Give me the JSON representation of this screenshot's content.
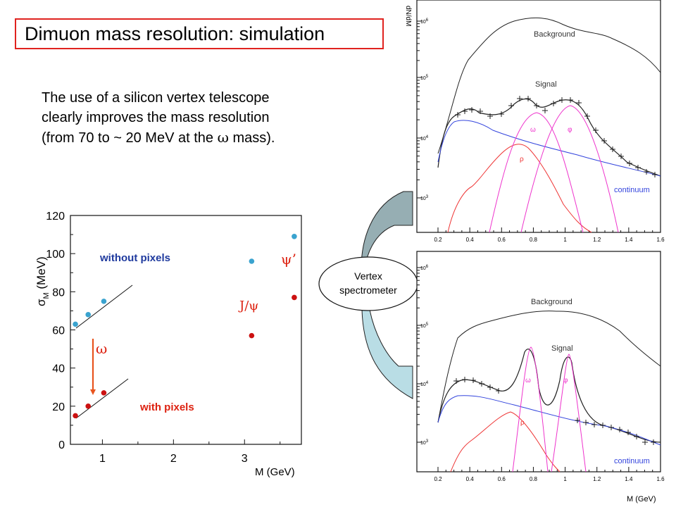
{
  "title": "Dimuon mass resolution: simulation",
  "description": {
    "line1": "The use of a silicon vertex telescope",
    "line2": "clearly improves the mass resolution",
    "line3_pre": "(from 70 to ~ 20 MeV at the ",
    "line3_sym": "ω",
    "line3_post": " mass)."
  },
  "arrow_label": {
    "line1": "Vertex",
    "line2": "spectrometer"
  },
  "resolution_plot": {
    "chart_data": {
      "type": "scatter",
      "xlabel": "M (GeV)",
      "ylabel_main": "σ",
      "ylabel_sub": "M",
      "ylabel_unit": " (MeV)",
      "xlim": [
        0.55,
        3.8
      ],
      "ylim": [
        0,
        120
      ],
      "xticks": [
        1,
        2,
        3
      ],
      "yticks": [
        0,
        20,
        40,
        60,
        80,
        100,
        120
      ],
      "series": [
        {
          "name": "without pixels",
          "color": "#3aa3cf",
          "points": [
            [
              0.62,
              63
            ],
            [
              0.8,
              68
            ],
            [
              1.02,
              75
            ],
            [
              3.1,
              96
            ],
            [
              3.7,
              109
            ]
          ]
        },
        {
          "name": "with pixels",
          "color": "#cc1111",
          "points": [
            [
              0.62,
              15
            ],
            [
              0.8,
              20
            ],
            [
              1.02,
              27
            ],
            [
              3.1,
              57
            ],
            [
              3.7,
              77
            ]
          ]
        }
      ],
      "annotations": {
        "omega": "ω",
        "jpsi": "J/ψ",
        "psiprime": "ψ’"
      }
    }
  },
  "spectra": {
    "ylabel": "dN/dM",
    "xlabel": "M (GeV)",
    "xticks": [
      "0.2",
      "0.4",
      "0.6",
      "0.8",
      "1",
      "1.2",
      "1.4",
      "1.6"
    ],
    "decades": [
      {
        "base": "10",
        "exp": "3"
      },
      {
        "base": "10",
        "exp": "4"
      },
      {
        "base": "10",
        "exp": "5"
      },
      {
        "base": "10",
        "exp": "6"
      }
    ],
    "labels": {
      "background": "Background",
      "signal": "Signal",
      "omega": "ω",
      "phi": "φ",
      "rho": "ρ",
      "continuum": "continuum"
    }
  },
  "colors": {
    "accent_red": "#e0231f",
    "blue_label": "#1f3a9e",
    "red_label": "#dd2211",
    "magenta": "#ee33cc",
    "continuum_blue": "#3344dd",
    "arrow_dark": "#96aeb3",
    "arrow_light": "#b9dde5"
  }
}
